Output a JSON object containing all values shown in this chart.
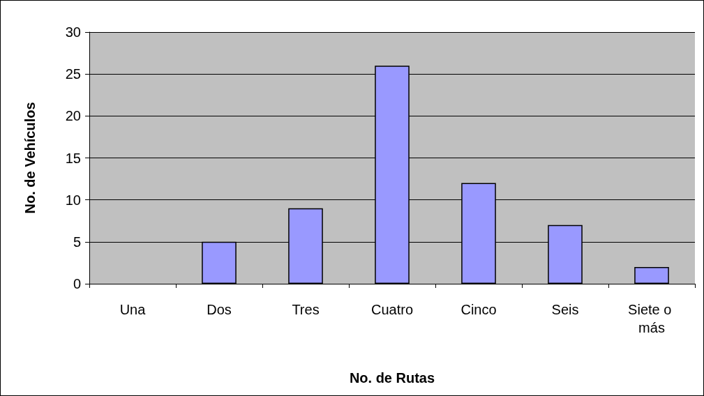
{
  "chart_data": {
    "type": "bar",
    "xlabel": "No. de Rutas",
    "ylabel": "No. de Vehículos",
    "categories": [
      "Una",
      "Dos",
      "Tres",
      "Cuatro",
      "Cinco",
      "Seis",
      "Siete o más"
    ],
    "values": [
      0,
      5,
      9,
      26,
      12,
      7,
      2
    ],
    "color": "#9999ff",
    "ylim": [
      0,
      30
    ],
    "yticks": [
      0,
      5,
      10,
      15,
      20,
      25,
      30
    ],
    "grid": "y"
  }
}
